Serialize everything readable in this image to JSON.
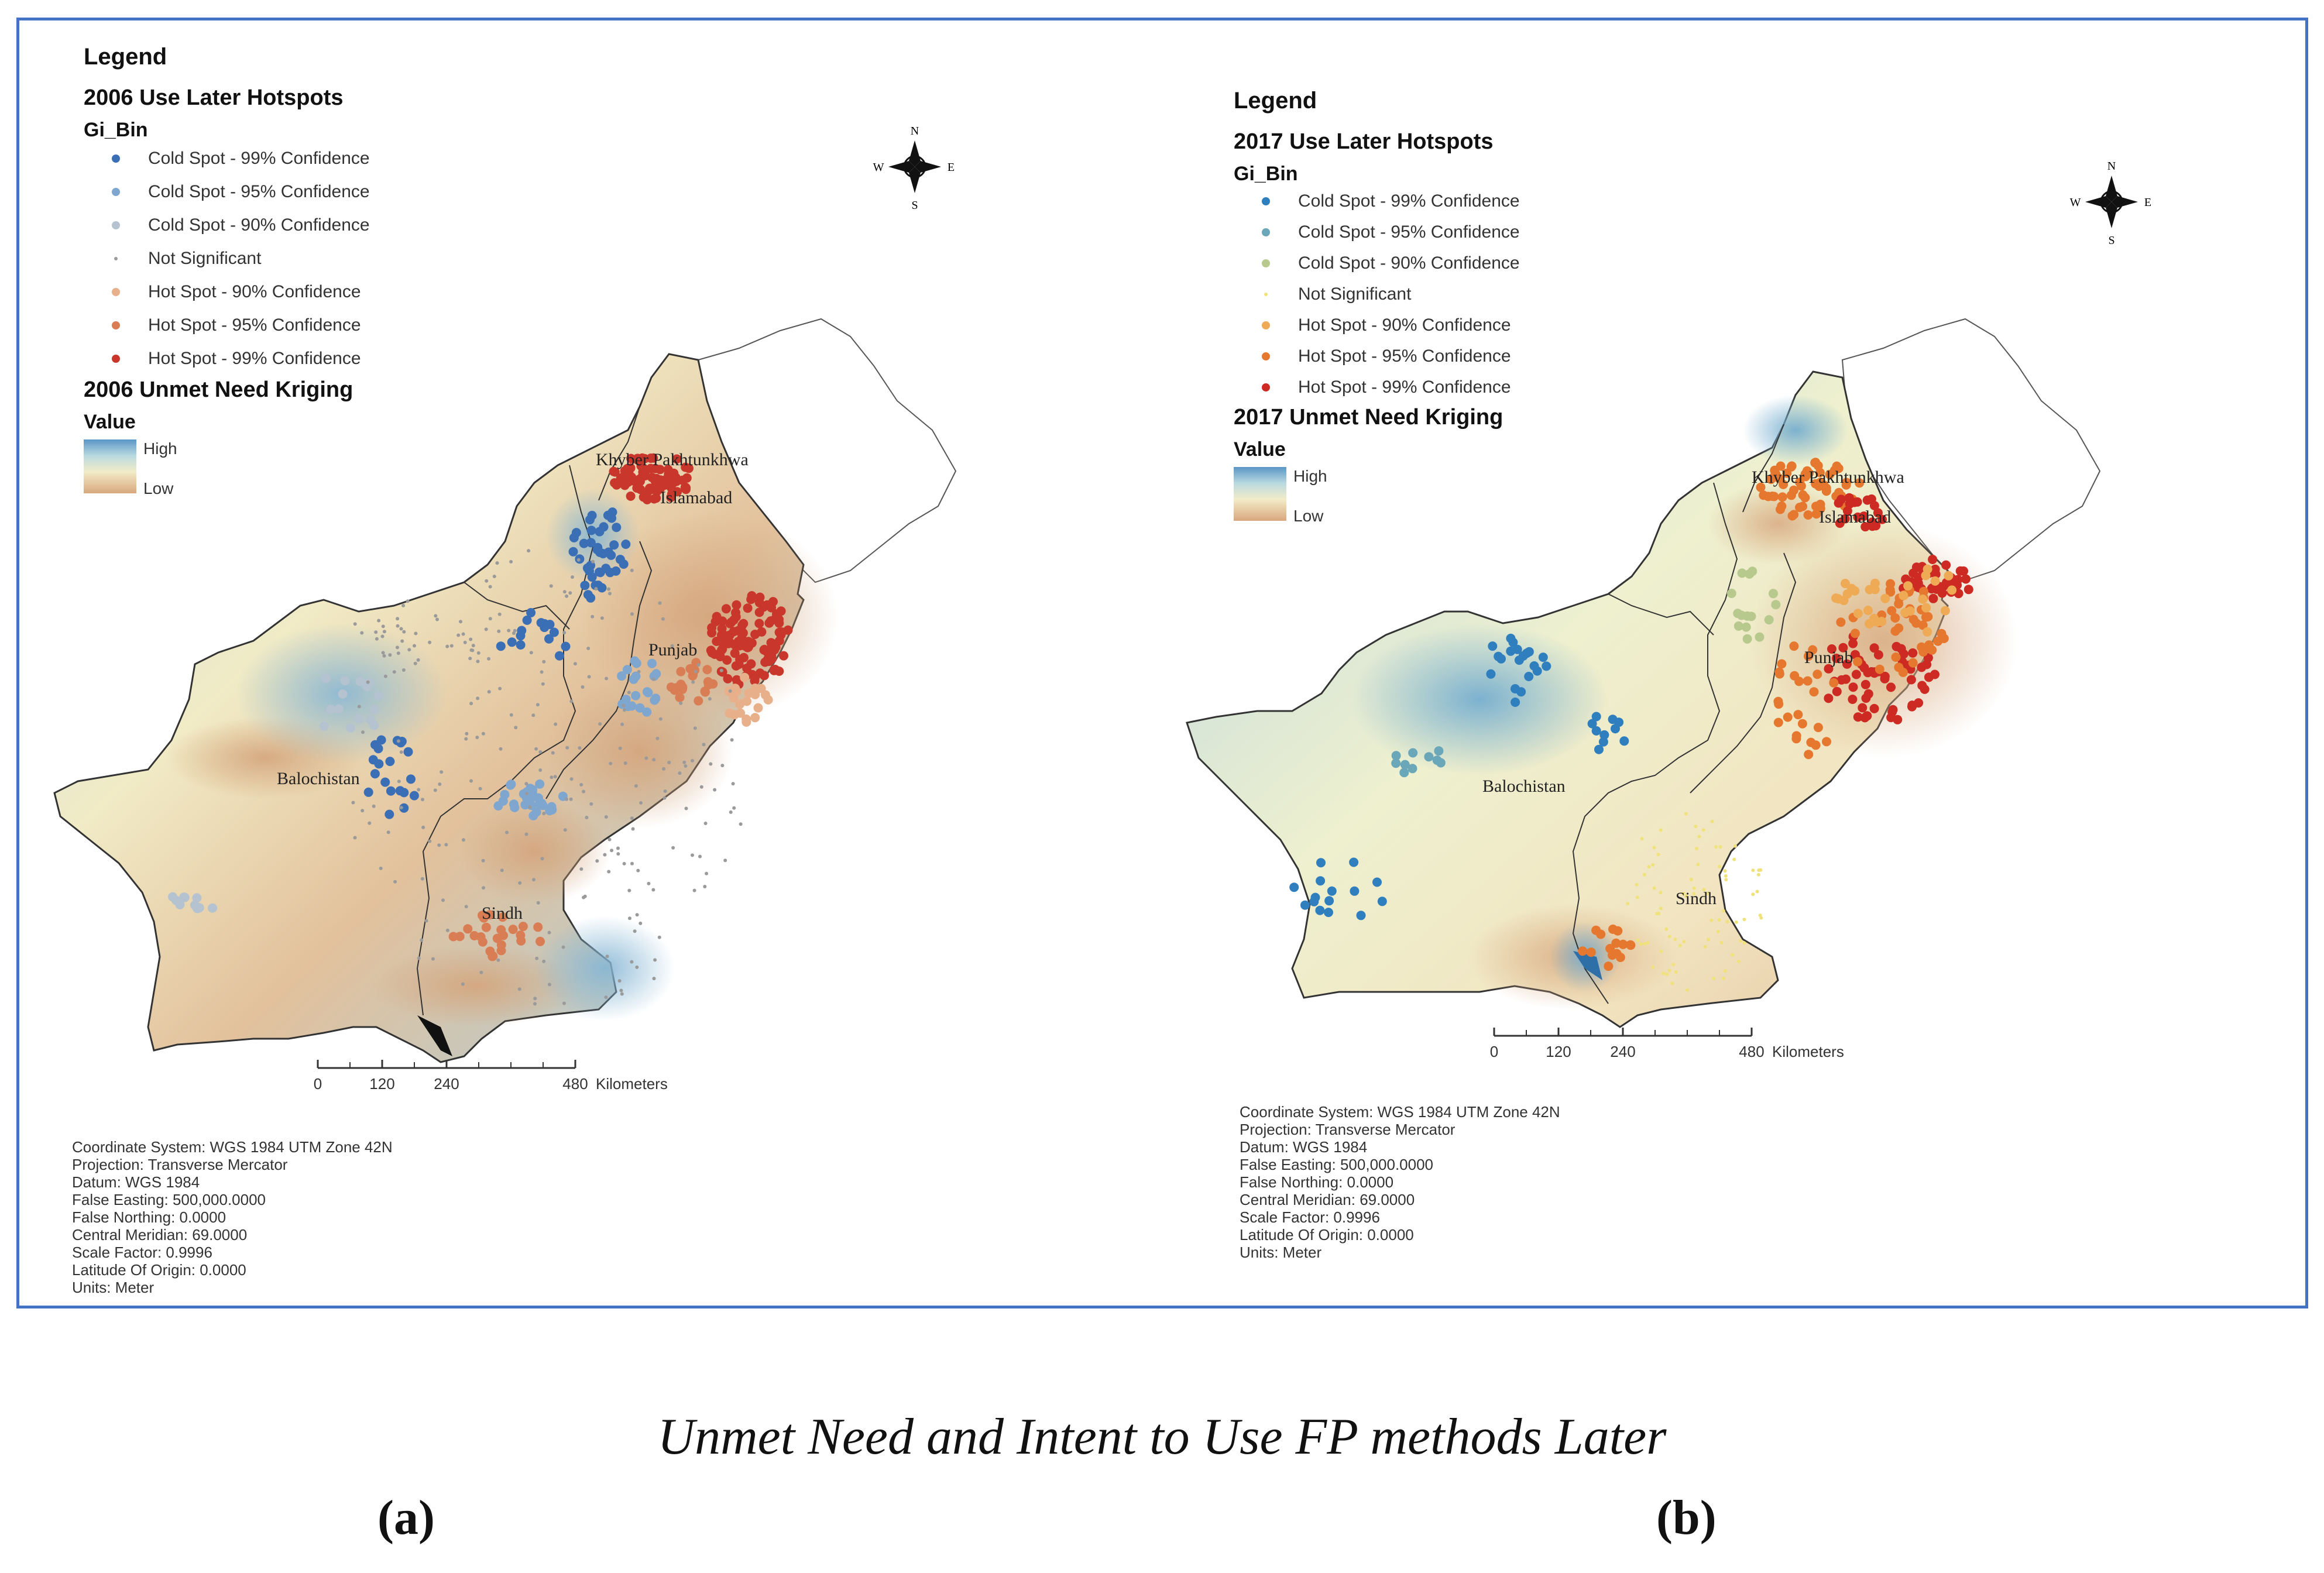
{
  "panels": [
    {
      "id": "a",
      "legend": {
        "title": "Legend",
        "layer": "2006 Use Later Hotspots",
        "field": "Gi_Bin",
        "items": [
          {
            "label": "Cold Spot - 99% Confidence",
            "color": "#3a6fb5"
          },
          {
            "label": "Cold Spot - 95% Confidence",
            "color": "#7ea6cf"
          },
          {
            "label": "Cold Spot - 90% Confidence",
            "color": "#b5c2cf"
          },
          {
            "label": "Not Significant",
            "color": "#9a9a9a"
          },
          {
            "label": "Hot Spot - 90% Confidence",
            "color": "#e8b08a"
          },
          {
            "label": "Hot Spot - 95% Confidence",
            "color": "#d97d55"
          },
          {
            "label": "Hot Spot - 99% Confidence",
            "color": "#c9372c"
          }
        ],
        "kriging_title": "2006 Unmet Need Kriging",
        "value_title": "Value",
        "high": "High",
        "low": "Low"
      },
      "places": {
        "kp": "Khyber Pakhtunkhwa",
        "islamabad": "Islamabad",
        "punjab": "Punjab",
        "balochistan": "Balochistan",
        "sindh": "Sindh"
      },
      "north": {
        "n": "N",
        "s": "S",
        "e": "E",
        "w": "W"
      },
      "scale": {
        "ticks": [
          "0",
          "120",
          "240",
          "480"
        ],
        "unit": "Kilometers"
      },
      "coords": [
        "Coordinate System: WGS 1984 UTM Zone 42N",
        "Projection: Transverse Mercator",
        "Datum: WGS 1984",
        "False Easting: 500,000.0000",
        "False Northing: 0.0000",
        "Central Meridian: 69.0000",
        "Scale Factor: 0.9996",
        "Latitude Of Origin: 0.0000",
        "Units: Meter"
      ]
    },
    {
      "id": "b",
      "legend": {
        "title": "Legend",
        "layer": "2017 Use Later Hotspots",
        "field": "Gi_Bin",
        "items": [
          {
            "label": "Cold Spot - 99% Confidence",
            "color": "#2f7fbf"
          },
          {
            "label": "Cold Spot - 95% Confidence",
            "color": "#6aa7b8"
          },
          {
            "label": "Cold Spot - 90% Confidence",
            "color": "#b7c98d"
          },
          {
            "label": "Not Significant",
            "color": "#f0e27a"
          },
          {
            "label": "Hot Spot - 90% Confidence",
            "color": "#eeaa55"
          },
          {
            "label": "Hot Spot - 95% Confidence",
            "color": "#e6772e"
          },
          {
            "label": "Hot Spot - 99% Confidence",
            "color": "#cc2a22"
          }
        ],
        "kriging_title": "2017 Unmet Need Kriging",
        "value_title": "Value",
        "high": "High",
        "low": "Low"
      },
      "places": {
        "kp": "Khyber Pakhtunkhwa",
        "islamabad": "Islamabad",
        "punjab": "Punjab",
        "balochistan": "Balochistan",
        "sindh": "Sindh"
      },
      "north": {
        "n": "N",
        "s": "S",
        "e": "E",
        "w": "W"
      },
      "scale": {
        "ticks": [
          "0",
          "120",
          "240",
          "480"
        ],
        "unit": "Kilometers"
      },
      "coords": [
        "Coordinate System: WGS 1984 UTM Zone 42N",
        "Projection: Transverse Mercator",
        "Datum: WGS 1984",
        "False Easting: 500,000.0000",
        "False Northing: 0.0000",
        "Central Meridian: 69.0000",
        "Scale Factor: 0.9996",
        "Latitude Of Origin: 0.0000",
        "Units: Meter"
      ]
    }
  ],
  "caption": "Unmet Need and Intent to Use FP methods Later",
  "sub_labels": [
    "(a)",
    "(b)"
  ]
}
